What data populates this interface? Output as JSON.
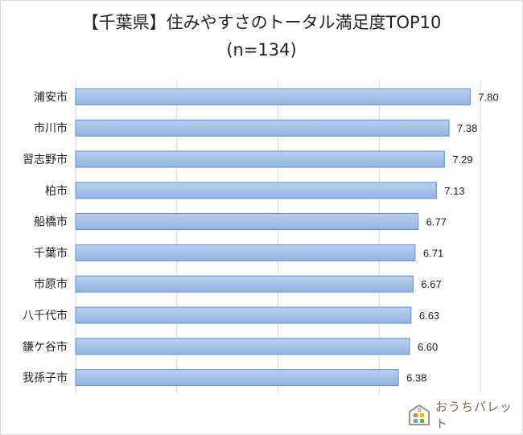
{
  "chart_data": {
    "type": "bar",
    "orientation": "horizontal",
    "title": "【千葉県】住みやすさのトータル満足度TOP10",
    "subtitle": "(n=134)",
    "categories": [
      "浦安市",
      "市川市",
      "習志野市",
      "柏市",
      "船橋市",
      "千葉市",
      "市原市",
      "八千代市",
      "鎌ケ谷市",
      "我孫子市"
    ],
    "values": [
      7.8,
      7.38,
      7.29,
      7.13,
      6.77,
      6.71,
      6.67,
      6.63,
      6.6,
      6.38
    ],
    "value_labels": [
      "7.80",
      "7.38",
      "7.29",
      "7.13",
      "6.77",
      "6.71",
      "6.67",
      "6.63",
      "6.60",
      "6.38"
    ],
    "xlim": [
      0,
      8
    ],
    "grid": true,
    "bar_color": "#9dbde6",
    "bar_border": "#5b8fd6"
  },
  "logo": {
    "text": "おうちパレット"
  }
}
